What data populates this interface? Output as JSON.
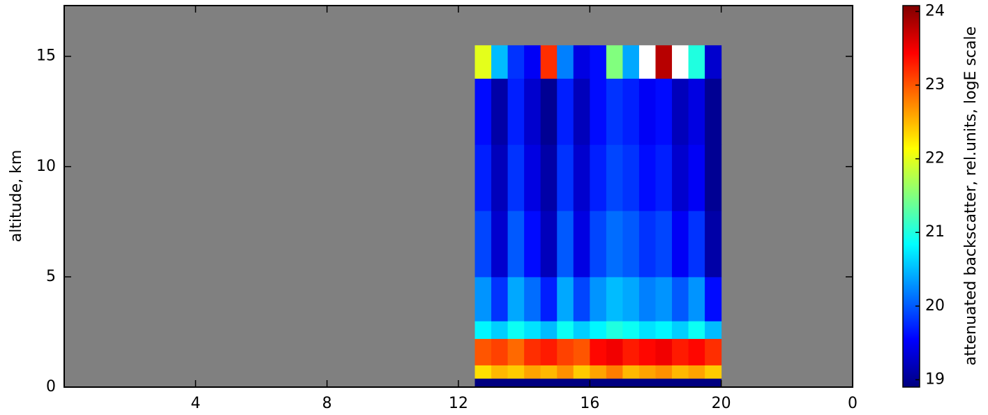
{
  "chart_data": {
    "type": "heatmap",
    "ylabel": "altitude, km",
    "colorbar_label": "attenuated backscatter, rel.units, logE scale",
    "colormap": "jet",
    "background": "#808080",
    "over_color": "#ffffff",
    "xlim": [
      0,
      24
    ],
    "xticks": [
      4,
      8,
      12,
      16,
      20,
      {
        "value": 24,
        "label": "0"
      }
    ],
    "ylim": [
      0,
      17.3
    ],
    "yticks": [
      0,
      5,
      10,
      15
    ],
    "clim": [
      18.9,
      24.08
    ],
    "cticks": [
      19,
      20,
      21,
      22,
      23,
      24
    ],
    "x_bins": [
      12.5,
      13,
      13.5,
      14,
      14.5,
      15,
      15.5,
      16,
      16.5,
      17,
      17.5,
      18,
      18.5,
      19,
      19.5,
      20
    ],
    "y_bins": [
      0,
      0.4,
      1,
      2.2,
      3,
      5,
      8,
      11,
      14,
      15.5
    ],
    "values": [
      [
        18.9,
        18.9,
        18.9,
        18.9,
        18.9,
        18.9,
        18.9,
        18.9,
        18.9,
        18.9,
        18.9,
        18.9,
        18.9,
        18.9,
        18.9
      ],
      [
        22.3,
        22.5,
        22.4,
        22.6,
        22.5,
        22.7,
        22.4,
        22.6,
        22.8,
        22.5,
        22.6,
        22.7,
        22.5,
        22.6,
        22.4
      ],
      [
        23.0,
        23.1,
        22.9,
        23.2,
        23.3,
        23.1,
        23.0,
        23.4,
        23.5,
        23.3,
        23.4,
        23.5,
        23.3,
        23.4,
        23.2
      ],
      [
        20.8,
        20.6,
        20.9,
        20.7,
        20.5,
        20.9,
        20.6,
        20.8,
        21.0,
        20.9,
        20.7,
        20.8,
        20.6,
        20.9,
        20.5
      ],
      [
        20.3,
        19.8,
        20.4,
        20.1,
        19.7,
        20.4,
        19.9,
        20.3,
        20.5,
        20.4,
        20.2,
        20.3,
        20.0,
        20.3,
        19.6
      ],
      [
        19.9,
        19.3,
        20.0,
        19.6,
        19.2,
        20.0,
        19.4,
        19.9,
        20.1,
        20.0,
        19.8,
        19.9,
        19.5,
        19.8,
        19.1
      ],
      [
        19.7,
        19.2,
        19.8,
        19.4,
        19.1,
        19.8,
        19.3,
        19.7,
        19.9,
        19.8,
        19.6,
        19.7,
        19.3,
        19.5,
        19.0
      ],
      [
        19.6,
        19.1,
        19.7,
        19.3,
        19.0,
        19.7,
        19.2,
        19.6,
        19.8,
        19.7,
        19.5,
        19.6,
        19.2,
        19.4,
        19.0
      ],
      [
        22.0,
        20.5,
        19.8,
        19.5,
        23.2,
        20.2,
        19.4,
        19.6,
        21.5,
        20.4,
        24.1,
        23.8,
        24.1,
        21.0,
        19.3
      ]
    ]
  }
}
